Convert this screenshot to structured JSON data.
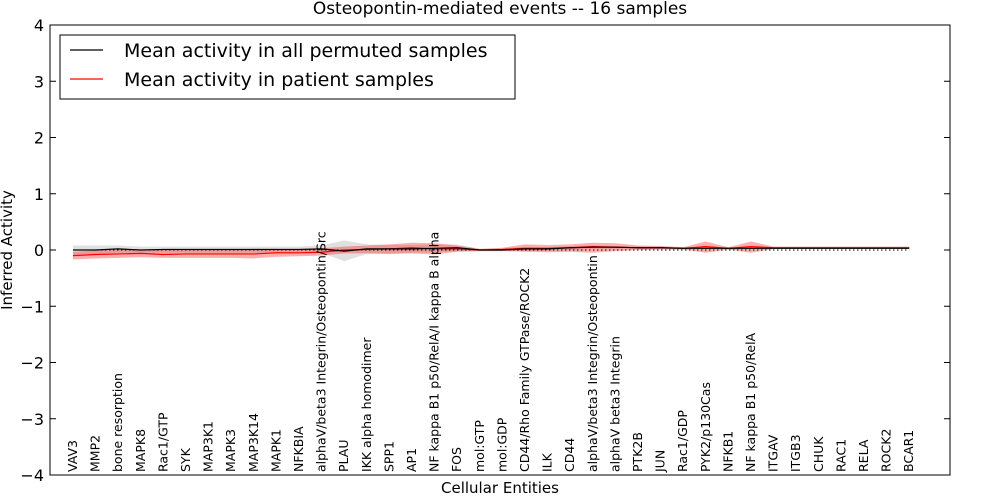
{
  "chart_data": {
    "type": "line",
    "title": "Osteopontin-mediated events -- 16 samples",
    "xlabel": "Cellular Entities",
    "ylabel": "Inferred Activity",
    "ylim": [
      -4,
      4
    ],
    "yticks": [
      "4",
      "3",
      "2",
      "1",
      "0",
      "−1",
      "−2",
      "−3",
      "−4"
    ],
    "ytick_values": [
      4,
      3,
      2,
      1,
      0,
      -1,
      -2,
      -3,
      -4
    ],
    "legend_position": "top-left",
    "categories": [
      "VAV3",
      "MMP2",
      "bone resorption",
      "MAPK8",
      "Rac1/GTP",
      "SYK",
      "MAP3K1",
      "MAPK3",
      "MAP3K14",
      "MAPK1",
      "NFKBIA",
      "alphaV/beta3 Integrin/Osteopontin/Src",
      "PLAU",
      "IKK alpha homodimer",
      "SPP1",
      "AP1",
      "NF kappa B1 p50/RelA/I kappa B alpha",
      "FOS",
      "mol:GTP",
      "mol:GDP",
      "CD44/Rho Family GTPase/ROCK2",
      "ILK",
      "CD44",
      "alphaV/beta3 Integrin/Osteopontin",
      "alphaV beta3 Integrin",
      "PTK2B",
      "JUN",
      "Rac1/GDP",
      "PYK2/p130Cas",
      "NFKB1",
      "NF kappa B1 p50/RelA",
      "ITGAV",
      "ITGB3",
      "CHUK",
      "RAC1",
      "RELA",
      "ROCK2",
      "BCAR1"
    ],
    "series": [
      {
        "name": "Mean activity in all permuted samples",
        "color": "#000000",
        "values": [
          0.0,
          0.0,
          0.02,
          0.0,
          0.01,
          0.01,
          0.01,
          0.01,
          0.01,
          0.01,
          0.01,
          0.02,
          -0.02,
          0.02,
          0.02,
          0.02,
          0.03,
          0.04,
          0.0,
          0.0,
          0.02,
          0.02,
          0.04,
          0.05,
          0.05,
          0.04,
          0.04,
          0.03,
          0.03,
          0.03,
          0.03,
          0.03,
          0.03,
          0.03,
          0.03,
          0.03,
          0.03,
          0.03
        ],
        "band_low": [
          -0.08,
          -0.07,
          -0.05,
          -0.05,
          -0.05,
          -0.05,
          -0.05,
          -0.05,
          -0.05,
          -0.05,
          -0.04,
          -0.05,
          -0.2,
          -0.07,
          -0.06,
          -0.05,
          -0.04,
          -0.02,
          -0.02,
          -0.02,
          -0.02,
          -0.01,
          0.0,
          0.02,
          0.02,
          0.02,
          0.02,
          0.02,
          0.02,
          0.02,
          0.02,
          0.02,
          0.02,
          0.02,
          0.02,
          0.02,
          0.02,
          0.02
        ],
        "band_high": [
          0.08,
          0.08,
          0.08,
          0.06,
          0.06,
          0.06,
          0.06,
          0.06,
          0.06,
          0.06,
          0.06,
          0.08,
          0.17,
          0.1,
          0.09,
          0.09,
          0.1,
          0.1,
          0.02,
          0.03,
          0.06,
          0.05,
          0.07,
          0.08,
          0.07,
          0.06,
          0.06,
          0.05,
          0.05,
          0.05,
          0.05,
          0.05,
          0.05,
          0.05,
          0.05,
          0.05,
          0.05,
          0.05
        ]
      },
      {
        "name": "Mean activity in patient samples",
        "color": "#ff0000",
        "values": [
          -0.1,
          -0.08,
          -0.07,
          -0.06,
          -0.08,
          -0.07,
          -0.07,
          -0.07,
          -0.07,
          -0.05,
          -0.05,
          -0.04,
          0.0,
          0.01,
          0.02,
          0.04,
          0.02,
          0.02,
          0.0,
          0.01,
          0.03,
          0.03,
          0.04,
          0.06,
          0.05,
          0.04,
          0.04,
          0.03,
          0.06,
          0.03,
          0.06,
          0.04,
          0.04,
          0.04,
          0.04,
          0.04,
          0.04,
          0.04
        ],
        "band_low": [
          -0.17,
          -0.15,
          -0.14,
          -0.13,
          -0.14,
          -0.14,
          -0.14,
          -0.14,
          -0.15,
          -0.12,
          -0.11,
          -0.1,
          -0.06,
          -0.06,
          -0.07,
          -0.06,
          -0.08,
          -0.03,
          -0.02,
          -0.02,
          -0.03,
          -0.04,
          -0.03,
          -0.05,
          -0.02,
          0.0,
          0.01,
          0.01,
          -0.05,
          0.01,
          -0.05,
          0.02,
          0.02,
          0.02,
          0.02,
          0.02,
          0.02,
          0.02
        ],
        "band_high": [
          -0.03,
          -0.01,
          0.0,
          0.01,
          0.0,
          0.01,
          0.01,
          0.01,
          0.02,
          0.02,
          0.02,
          0.03,
          0.06,
          0.08,
          0.1,
          0.13,
          0.12,
          0.08,
          0.02,
          0.04,
          0.1,
          0.09,
          0.1,
          0.13,
          0.12,
          0.08,
          0.07,
          0.05,
          0.15,
          0.05,
          0.15,
          0.06,
          0.06,
          0.06,
          0.06,
          0.06,
          0.06,
          0.06
        ]
      }
    ],
    "baseline": 0
  }
}
